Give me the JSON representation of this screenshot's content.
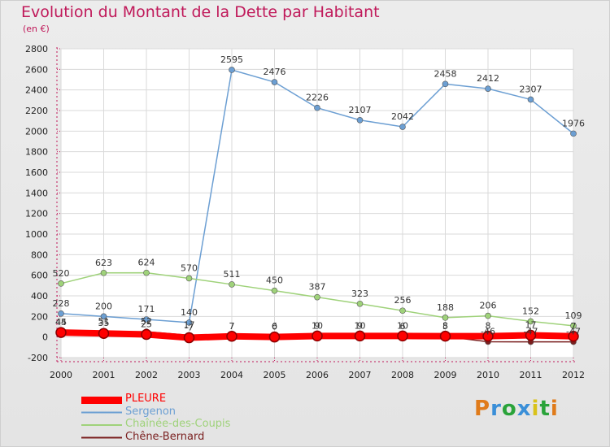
{
  "header": {
    "title": "Evolution du Montant de la Dette par Habitant",
    "unit": "(en €)"
  },
  "logo": {
    "text": "Proxiti",
    "colors": [
      "#e07b1a",
      "#3a8fd8",
      "#2aa33a",
      "#3a8fd8",
      "#d9c21a",
      "#2aa33a",
      "#e07b1a"
    ]
  },
  "colors": {
    "title": "#c0195a",
    "pleure": "#ff0000",
    "sergenon": "#6c9fd3",
    "chainee": "#9fd27a",
    "chene": "#7a1f1f"
  },
  "chart_data": {
    "type": "line",
    "x": [
      "2000",
      "2001",
      "2002",
      "2003",
      "2004",
      "2005",
      "2006",
      "2007",
      "2008",
      "2009",
      "2010",
      "2011",
      "2012"
    ],
    "ylim": [
      -200,
      2800
    ],
    "yticks": [
      -200,
      0,
      200,
      400,
      600,
      800,
      1000,
      1200,
      1400,
      1600,
      1800,
      2000,
      2200,
      2400,
      2600,
      2800
    ],
    "grid": true,
    "legend": "bottom-left",
    "series": [
      {
        "name": "PLEURE",
        "color": "#ff0000",
        "values": [
          44,
          35,
          25,
          -7,
          7,
          0,
          10,
          10,
          10,
          8,
          8,
          17,
          7
        ],
        "labels": [
          "44",
          "35",
          "25",
          "-7",
          "7",
          "0",
          "10",
          "10",
          "10",
          "8",
          "8",
          "17",
          "7"
        ]
      },
      {
        "name": "Sergenon",
        "color": "#6c9fd3",
        "values": [
          228,
          200,
          171,
          140,
          2595,
          2476,
          2226,
          2107,
          2042,
          2458,
          2412,
          2307,
          1976
        ],
        "labels": [
          "228",
          "200",
          "171",
          "140",
          "2595",
          "2476",
          "2226",
          "2107",
          "2042",
          "2458",
          "2412",
          "2307",
          "1976"
        ]
      },
      {
        "name": "Chaînée-des-Coupis",
        "color": "#9fd27a",
        "values": [
          520,
          623,
          624,
          570,
          511,
          450,
          387,
          323,
          256,
          188,
          206,
          152,
          109
        ],
        "labels": [
          "520",
          "623",
          "624",
          "570",
          "511",
          "450",
          "387",
          "323",
          "256",
          "188",
          "206",
          "152",
          "109"
        ]
      },
      {
        "name": "Chêne-Bernard",
        "color": "#7a1f1f",
        "values": [
          45,
          51,
          52,
          17,
          7,
          6,
          9,
          9,
          6,
          5,
          -46,
          -47,
          -47
        ],
        "labels": [
          "45",
          "51",
          "52",
          "17",
          "7",
          "6",
          "9",
          "9",
          "6",
          "5",
          "-46",
          "-47",
          "-47"
        ]
      }
    ]
  }
}
